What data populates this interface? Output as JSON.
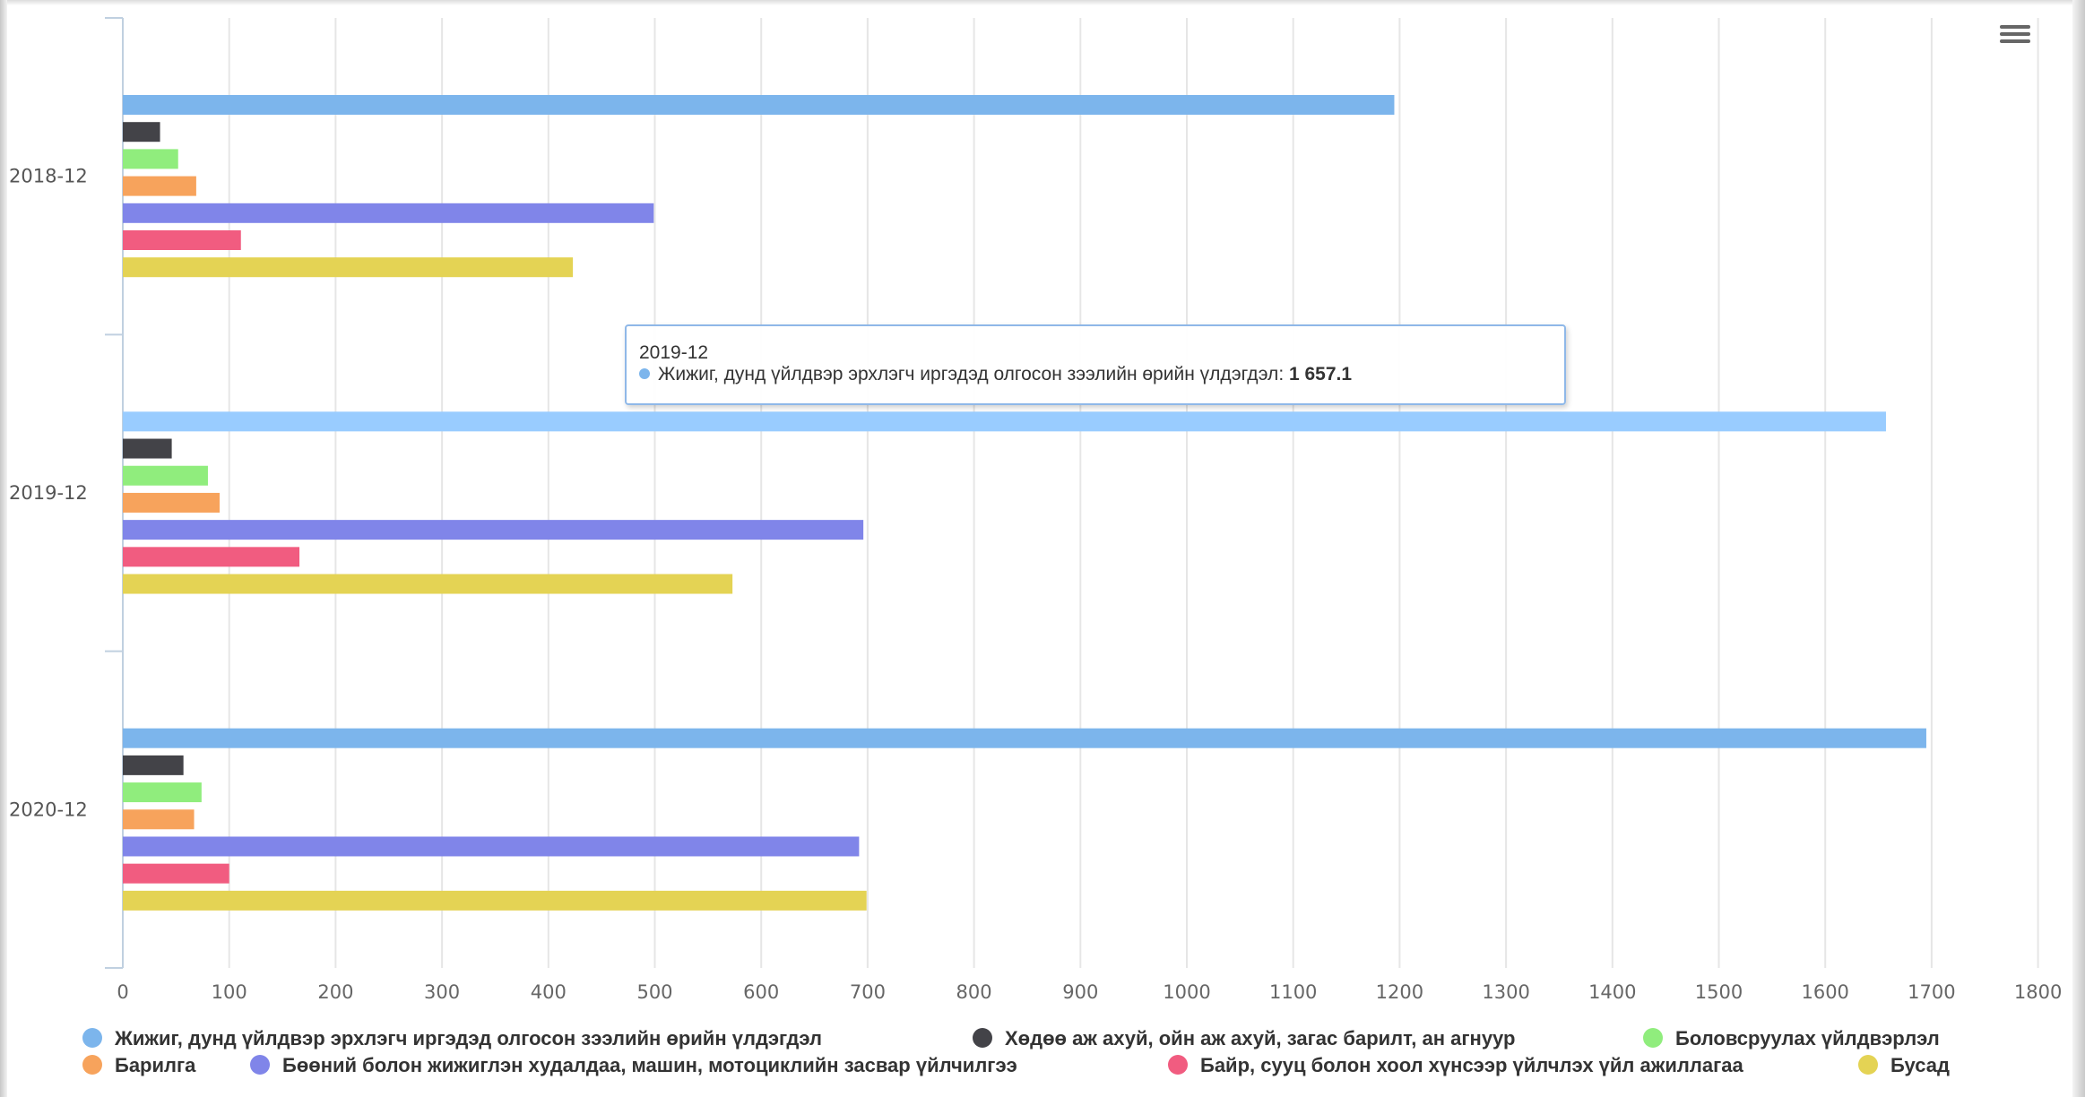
{
  "chart_data": {
    "type": "bar",
    "orientation": "horizontal",
    "categories": [
      "2018-12",
      "2019-12",
      "2020-12"
    ],
    "series": [
      {
        "name": "Жижиг, дунд үйлдвэр эрхлэгч иргэдэд олгосон зээлийн өрийн үлдэгдэл",
        "color": "#7cb5ec",
        "values": [
          1195,
          1657.1,
          1695
        ]
      },
      {
        "name": "Хөдөө аж ахуй, ойн аж ахуй, загас барилт, ан агнуур",
        "color": "#434348",
        "values": [
          35,
          46,
          57
        ]
      },
      {
        "name": "Боловсруулах үйлдвэрлэл",
        "color": "#90ed7d",
        "values": [
          52,
          80,
          74
        ]
      },
      {
        "name": "Барилга",
        "color": "#f7a35c",
        "values": [
          69,
          91,
          67
        ]
      },
      {
        "name": "Бөөний болон жижиглэн худалдаа, машин, мотоциклийн засвар үйлчилгээ",
        "color": "#8085e9",
        "values": [
          499,
          696,
          692
        ]
      },
      {
        "name": "Байр, сууц болон хоол хүнсээр үйлчлэх үйл ажиллагаа",
        "color": "#f15c80",
        "values": [
          111,
          166,
          100
        ]
      },
      {
        "name": "Бусад",
        "color": "#e4d354",
        "values": [
          423,
          573,
          699
        ]
      }
    ],
    "x_ticks": [
      "0",
      "100",
      "200",
      "300",
      "400",
      "500",
      "600",
      "700",
      "800",
      "900",
      "1000",
      "1100",
      "1200",
      "1300",
      "1400",
      "1500",
      "1600",
      "1700",
      "1800"
    ],
    "xlim": [
      0,
      1800
    ],
    "grid": true,
    "legend_position": "bottom",
    "hover_highlight_color": "#99ccff",
    "tooltip": {
      "category": "2019-12",
      "series": "Жижиг, дунд үйлдвэр эрхлэгч иргэдэд олгосон зээлийн өрийн үлдэгдэл",
      "value_text": "1 657.1"
    }
  }
}
